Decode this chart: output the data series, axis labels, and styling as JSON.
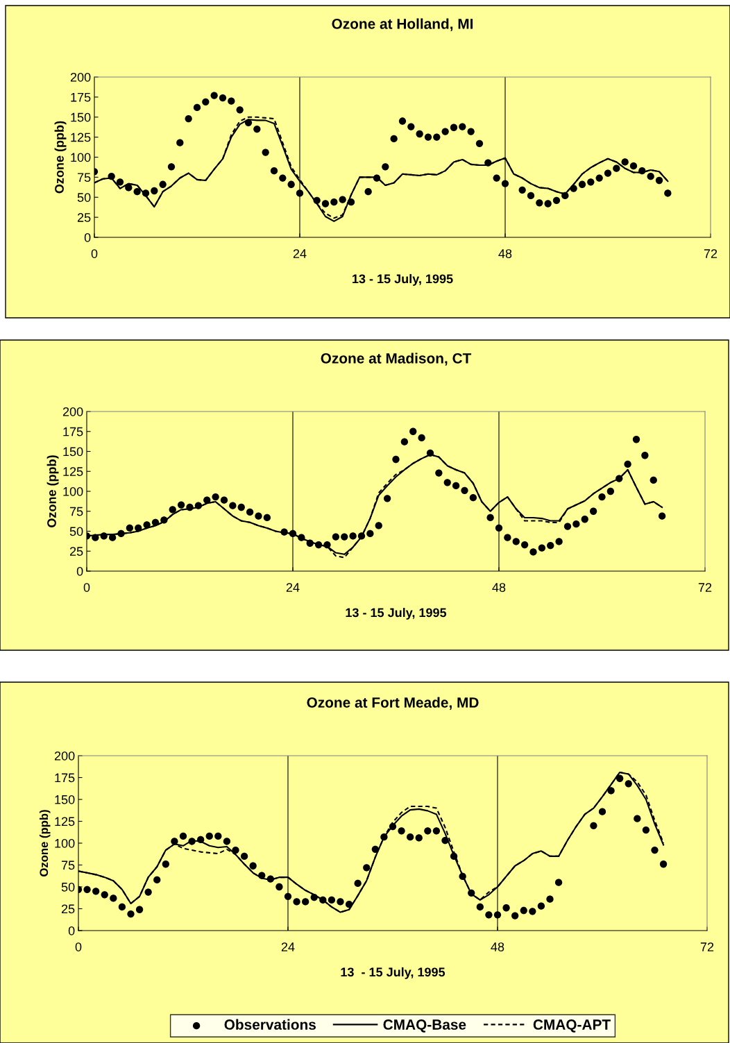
{
  "chart_data": [
    {
      "type": "line",
      "title": "Ozone at Holland, MI",
      "xlabel": "13 - 15 July, 1995",
      "ylabel": "Ozone (ppb)",
      "x": [
        0,
        1,
        2,
        3,
        4,
        5,
        6,
        7,
        8,
        9,
        10,
        11,
        12,
        13,
        14,
        15,
        16,
        17,
        18,
        19,
        20,
        21,
        22,
        23,
        24,
        25,
        26,
        27,
        28,
        29,
        30,
        31,
        32,
        33,
        34,
        35,
        36,
        37,
        38,
        39,
        40,
        41,
        42,
        43,
        44,
        45,
        46,
        47,
        48,
        49,
        50,
        51,
        52,
        53,
        54,
        55,
        56,
        57,
        58,
        59,
        60,
        61,
        62,
        63,
        64,
        65,
        66,
        67
      ],
      "xlim": [
        0,
        72
      ],
      "xticks": [
        0,
        24,
        48,
        72
      ],
      "ylim": [
        0,
        200
      ],
      "yticks": [
        0,
        25,
        50,
        75,
        100,
        125,
        150,
        175,
        200
      ],
      "grid": false,
      "legend": false,
      "ref_lines": [
        {
          "axis": "x",
          "value": 24,
          "color": "#000000"
        },
        {
          "axis": "x",
          "value": 48,
          "color": "#000000"
        }
      ],
      "series": [
        {
          "type": "scatter",
          "marker": "circle",
          "color": "#000000",
          "values": [
            82,
            null,
            76,
            69,
            62,
            57,
            55,
            58,
            66,
            88,
            118,
            148,
            162,
            169,
            177,
            174,
            170,
            159,
            143,
            135,
            106,
            83,
            74,
            66,
            55,
            null,
            46,
            42,
            44,
            47,
            44,
            null,
            57,
            74,
            88,
            123,
            145,
            138,
            129,
            125,
            125,
            132,
            137,
            138,
            132,
            117,
            93,
            74,
            67,
            null,
            59,
            52,
            43,
            42,
            46,
            52,
            61,
            66,
            69,
            74,
            80,
            86,
            94,
            89,
            83,
            76,
            71,
            55
          ]
        },
        {
          "line_style": "solid",
          "color": "#000000",
          "values": [
            68,
            73,
            74,
            61,
            67,
            65,
            52,
            38,
            57,
            64,
            74,
            80,
            72,
            71,
            85,
            98,
            125,
            141,
            147,
            146,
            146,
            142,
            114,
            85,
            70,
            57,
            42,
            26,
            20,
            26,
            53,
            75,
            75,
            75,
            65,
            68,
            79,
            78,
            77,
            79,
            78,
            83,
            94,
            97,
            91,
            90,
            90,
            95,
            99,
            79,
            74,
            67,
            62,
            61,
            57,
            54,
            66,
            79,
            87,
            93,
            98,
            94,
            86,
            81,
            81,
            84,
            82,
            70
          ]
        },
        {
          "line_style": "dashed",
          "color": "#000000",
          "values": [
            68,
            73,
            74,
            61,
            67,
            65,
            52,
            38,
            57,
            64,
            74,
            80,
            72,
            71,
            85,
            98,
            128,
            145,
            150,
            150,
            149,
            148,
            118,
            88,
            72,
            57,
            42,
            30,
            24,
            28,
            53,
            75,
            75,
            75,
            65,
            68,
            79,
            78,
            77,
            79,
            78,
            83,
            94,
            97,
            91,
            90,
            90,
            95,
            99,
            79,
            74,
            67,
            62,
            61,
            57,
            54,
            66,
            79,
            87,
            93,
            98,
            94,
            86,
            81,
            81,
            84,
            82,
            70
          ]
        }
      ]
    },
    {
      "type": "line",
      "title": "Ozone at Madison, CT",
      "xlabel": "13 - 15 July, 1995",
      "ylabel": "Ozone (ppb)",
      "x": [
        0,
        1,
        2,
        3,
        4,
        5,
        6,
        7,
        8,
        9,
        10,
        11,
        12,
        13,
        14,
        15,
        16,
        17,
        18,
        19,
        20,
        21,
        22,
        23,
        24,
        25,
        26,
        27,
        28,
        29,
        30,
        31,
        32,
        33,
        34,
        35,
        36,
        37,
        38,
        39,
        40,
        41,
        42,
        43,
        44,
        45,
        46,
        47,
        48,
        49,
        50,
        51,
        52,
        53,
        54,
        55,
        56,
        57,
        58,
        59,
        60,
        61,
        62,
        63,
        64,
        65,
        66,
        67
      ],
      "xlim": [
        0,
        72
      ],
      "xticks": [
        0,
        24,
        48,
        72
      ],
      "ylim": [
        0,
        200
      ],
      "yticks": [
        0,
        25,
        50,
        75,
        100,
        125,
        150,
        175,
        200
      ],
      "grid": false,
      "legend": false,
      "ref_lines": [
        {
          "axis": "x",
          "value": 24,
          "color": "#000000"
        },
        {
          "axis": "x",
          "value": 48,
          "color": "#000000"
        }
      ],
      "series": [
        {
          "type": "scatter",
          "marker": "circle",
          "color": "#000000",
          "values": [
            44,
            42,
            44,
            42,
            47,
            54,
            54,
            58,
            61,
            64,
            77,
            83,
            80,
            82,
            89,
            93,
            89,
            82,
            80,
            74,
            69,
            67,
            null,
            49,
            47,
            42,
            35,
            33,
            33,
            43,
            43,
            44,
            44,
            47,
            57,
            91,
            140,
            162,
            175,
            167,
            148,
            123,
            111,
            107,
            101,
            92,
            null,
            67,
            54,
            42,
            37,
            33,
            24,
            29,
            32,
            37,
            56,
            59,
            65,
            75,
            93,
            100,
            116,
            134,
            165,
            145,
            114,
            69
          ]
        },
        {
          "line_style": "solid",
          "color": "#000000",
          "values": [
            44,
            45,
            46,
            46,
            47,
            48,
            50,
            54,
            57,
            62,
            71,
            77,
            78,
            80,
            85,
            87,
            78,
            69,
            63,
            61,
            57,
            54,
            50,
            48,
            47,
            41,
            37,
            33,
            31,
            23,
            21,
            30,
            43,
            66,
            95,
            107,
            118,
            127,
            135,
            141,
            146,
            143,
            132,
            127,
            123,
            110,
            87,
            75,
            86,
            93,
            78,
            67,
            67,
            66,
            63,
            63,
            78,
            83,
            88,
            97,
            104,
            111,
            116,
            127,
            105,
            84,
            87,
            80
          ]
        },
        {
          "line_style": "dashed",
          "color": "#000000",
          "values": [
            44,
            45,
            46,
            46,
            47,
            48,
            50,
            54,
            57,
            62,
            71,
            77,
            78,
            80,
            85,
            87,
            78,
            69,
            63,
            61,
            57,
            54,
            50,
            48,
            47,
            41,
            37,
            33,
            31,
            19,
            17,
            30,
            43,
            66,
            98,
            110,
            121,
            127,
            135,
            141,
            146,
            143,
            132,
            127,
            123,
            110,
            87,
            75,
            86,
            93,
            78,
            63,
            63,
            63,
            61,
            61,
            78,
            83,
            88,
            97,
            104,
            111,
            116,
            127,
            105,
            84,
            87,
            80
          ]
        }
      ]
    },
    {
      "type": "line",
      "title": "Ozone at Fort Meade, MD",
      "xlabel": "13  - 15 July, 1995",
      "ylabel": "Ozone (ppb)",
      "x": [
        0,
        1,
        2,
        3,
        4,
        5,
        6,
        7,
        8,
        9,
        10,
        11,
        12,
        13,
        14,
        15,
        16,
        17,
        18,
        19,
        20,
        21,
        22,
        23,
        24,
        25,
        26,
        27,
        28,
        29,
        30,
        31,
        32,
        33,
        34,
        35,
        36,
        37,
        38,
        39,
        40,
        41,
        42,
        43,
        44,
        45,
        46,
        47,
        48,
        49,
        50,
        51,
        52,
        53,
        54,
        55,
        56,
        57,
        58,
        59,
        60,
        61,
        62,
        63,
        64,
        65,
        66,
        67
      ],
      "xlim": [
        0,
        72
      ],
      "xticks": [
        0,
        24,
        48,
        72
      ],
      "ylim": [
        0,
        200
      ],
      "yticks": [
        0,
        25,
        50,
        75,
        100,
        125,
        150,
        175,
        200
      ],
      "grid": false,
      "legend": "bottom",
      "ref_lines": [
        {
          "axis": "x",
          "value": 24,
          "color": "#000000"
        },
        {
          "axis": "x",
          "value": 48,
          "color": "#000000"
        }
      ],
      "series": [
        {
          "type": "scatter",
          "name": "Observations",
          "marker": "circle",
          "color": "#000000",
          "values": [
            47,
            47,
            45,
            41,
            37,
            27,
            19,
            24,
            44,
            58,
            76,
            102,
            108,
            102,
            104,
            108,
            108,
            102,
            92,
            85,
            74,
            63,
            59,
            50,
            39,
            33,
            33,
            38,
            35,
            35,
            33,
            30,
            54,
            72,
            93,
            107,
            119,
            114,
            107,
            106,
            114,
            114,
            103,
            85,
            62,
            43,
            27,
            18,
            18,
            26,
            17,
            23,
            22,
            28,
            36,
            55,
            null,
            null,
            null,
            120,
            136,
            160,
            174,
            168,
            128,
            115,
            92,
            76
          ]
        },
        {
          "name": "CMAQ-Base",
          "line_style": "solid",
          "color": "#000000",
          "values": [
            68,
            66,
            64,
            61,
            57,
            47,
            31,
            39,
            61,
            73,
            92,
            99,
            97,
            103,
            102,
            97,
            95,
            96,
            87,
            76,
            66,
            60,
            58,
            61,
            61,
            53,
            46,
            41,
            35,
            27,
            21,
            24,
            40,
            57,
            84,
            107,
            120,
            131,
            138,
            139,
            137,
            133,
            111,
            86,
            63,
            42,
            35,
            41,
            50,
            62,
            74,
            80,
            88,
            91,
            85,
            85,
            103,
            119,
            133,
            140,
            153,
            167,
            181,
            179,
            166,
            150,
            122,
            98
          ]
        },
        {
          "name": "CMAQ-APT",
          "line_style": "dashed",
          "color": "#000000",
          "values": [
            68,
            66,
            64,
            61,
            57,
            47,
            31,
            39,
            61,
            73,
            92,
            99,
            94,
            92,
            90,
            89,
            88,
            93,
            87,
            76,
            66,
            60,
            58,
            61,
            61,
            53,
            46,
            41,
            35,
            27,
            21,
            24,
            40,
            57,
            84,
            107,
            124,
            135,
            142,
            142,
            142,
            140,
            118,
            90,
            63,
            42,
            35,
            44,
            50,
            62,
            74,
            80,
            88,
            91,
            85,
            85,
            103,
            119,
            133,
            140,
            153,
            167,
            181,
            179,
            170,
            155,
            126,
            100
          ]
        }
      ]
    }
  ]
}
